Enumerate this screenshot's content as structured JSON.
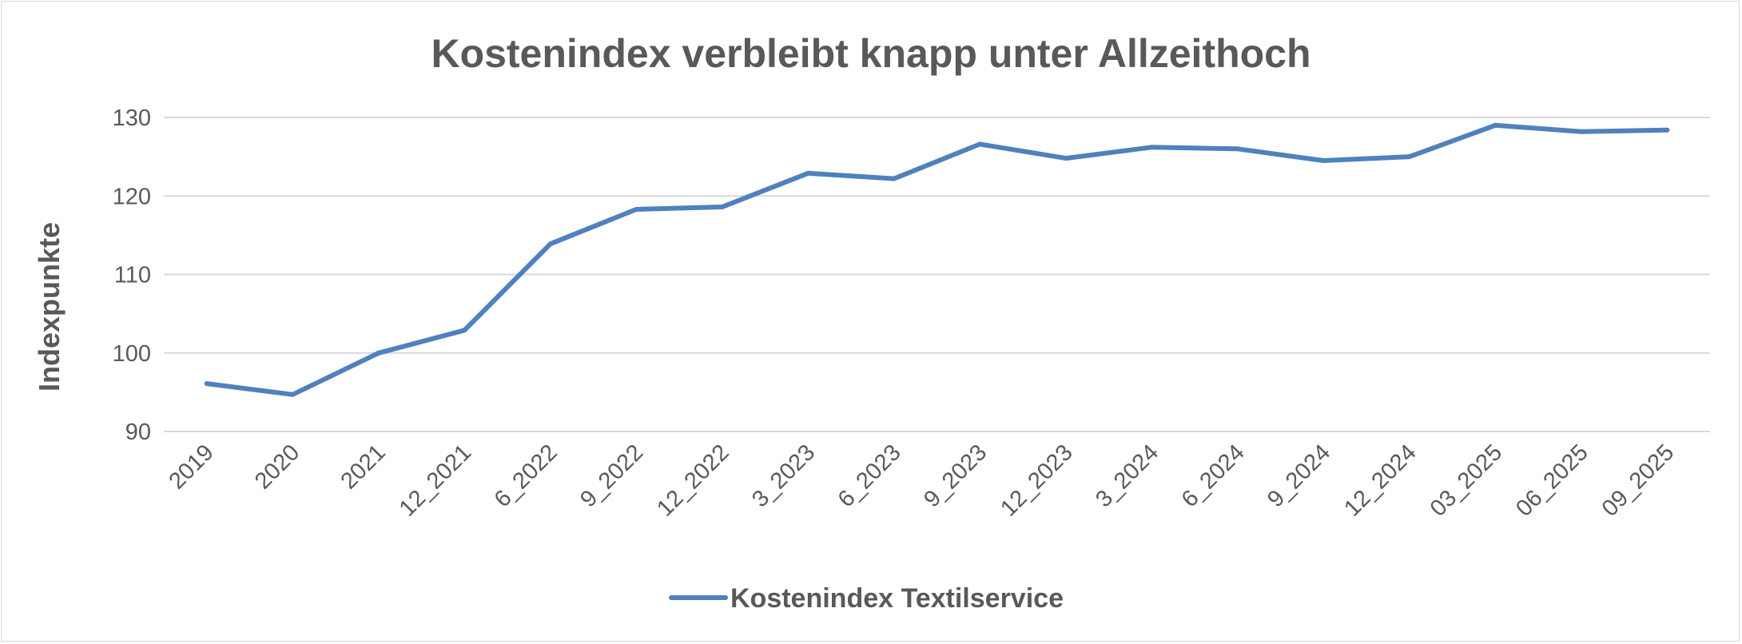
{
  "chart_data": {
    "type": "line",
    "title": "Kostenindex verbleibt knapp unter Allzeithoch",
    "ylabel": "Indexpunkte",
    "xlabel": "",
    "ylim": [
      90,
      130
    ],
    "yticks": [
      "90",
      "100",
      "110",
      "120",
      "130"
    ],
    "grid": true,
    "legend_position": "bottom",
    "categories": [
      "2019",
      "2020",
      "2021",
      "12_2021",
      "6_2022",
      "9_2022",
      "12_2022",
      "3_2023",
      "6_2023",
      "9_2023",
      "12_2023",
      "3_2024",
      "6_2024",
      "9_2024",
      "12_2024",
      "03_2025",
      "06_2025",
      "09_2025"
    ],
    "series": [
      {
        "name": "Kostenindex Textilservice",
        "color": "#4f81bd",
        "values": [
          96.1,
          94.7,
          100.0,
          102.9,
          113.9,
          118.3,
          118.6,
          122.9,
          122.2,
          126.6,
          124.8,
          126.2,
          126.0,
          124.5,
          125.0,
          129.0,
          128.2,
          128.4
        ]
      }
    ]
  }
}
